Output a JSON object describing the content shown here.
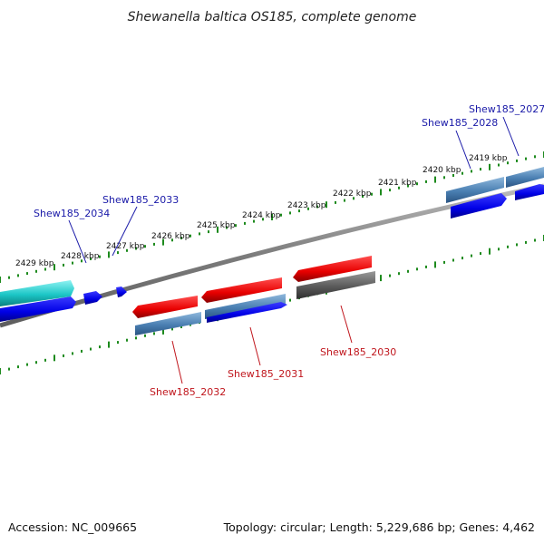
{
  "title": "Shewanella baltica OS185, complete genome",
  "footer": {
    "accession": "Accession: NC_009665",
    "topology": "Topology: circular; Length: 5,229,686 bp; Genes: 4,462"
  },
  "ticks": [
    {
      "label": "2419 kbp"
    },
    {
      "label": "2420 kbp"
    },
    {
      "label": "2421 kbp"
    },
    {
      "label": "2422 kbp"
    },
    {
      "label": "2423 kbp"
    },
    {
      "label": "2424 kbp"
    },
    {
      "label": "2425 kbp"
    },
    {
      "label": "2426 kbp"
    },
    {
      "label": "2427 kbp"
    },
    {
      "label": "2428 kbp"
    },
    {
      "label": "2429 kbp"
    }
  ],
  "gene_labels": [
    {
      "name": "Shew185_2027",
      "strand": "forward"
    },
    {
      "name": "Shew185_2028",
      "strand": "forward"
    },
    {
      "name": "Shew185_2033",
      "strand": "forward"
    },
    {
      "name": "Shew185_2034",
      "strand": "forward"
    },
    {
      "name": "Shew185_2030",
      "strand": "reverse"
    },
    {
      "name": "Shew185_2031",
      "strand": "reverse"
    },
    {
      "name": "Shew185_2032",
      "strand": "reverse"
    }
  ],
  "colors": {
    "forward_label": "#1a1aa8",
    "reverse_label": "#c0161d",
    "cds_forward": "#0000e0",
    "cds_reverse": "#e01010",
    "gene_steel": "#4f86b8",
    "gene_teal": "#20c8c8",
    "gene_gray": "#5a5a5a",
    "backbone": "#888888",
    "ruler": "#1d8a1d"
  }
}
